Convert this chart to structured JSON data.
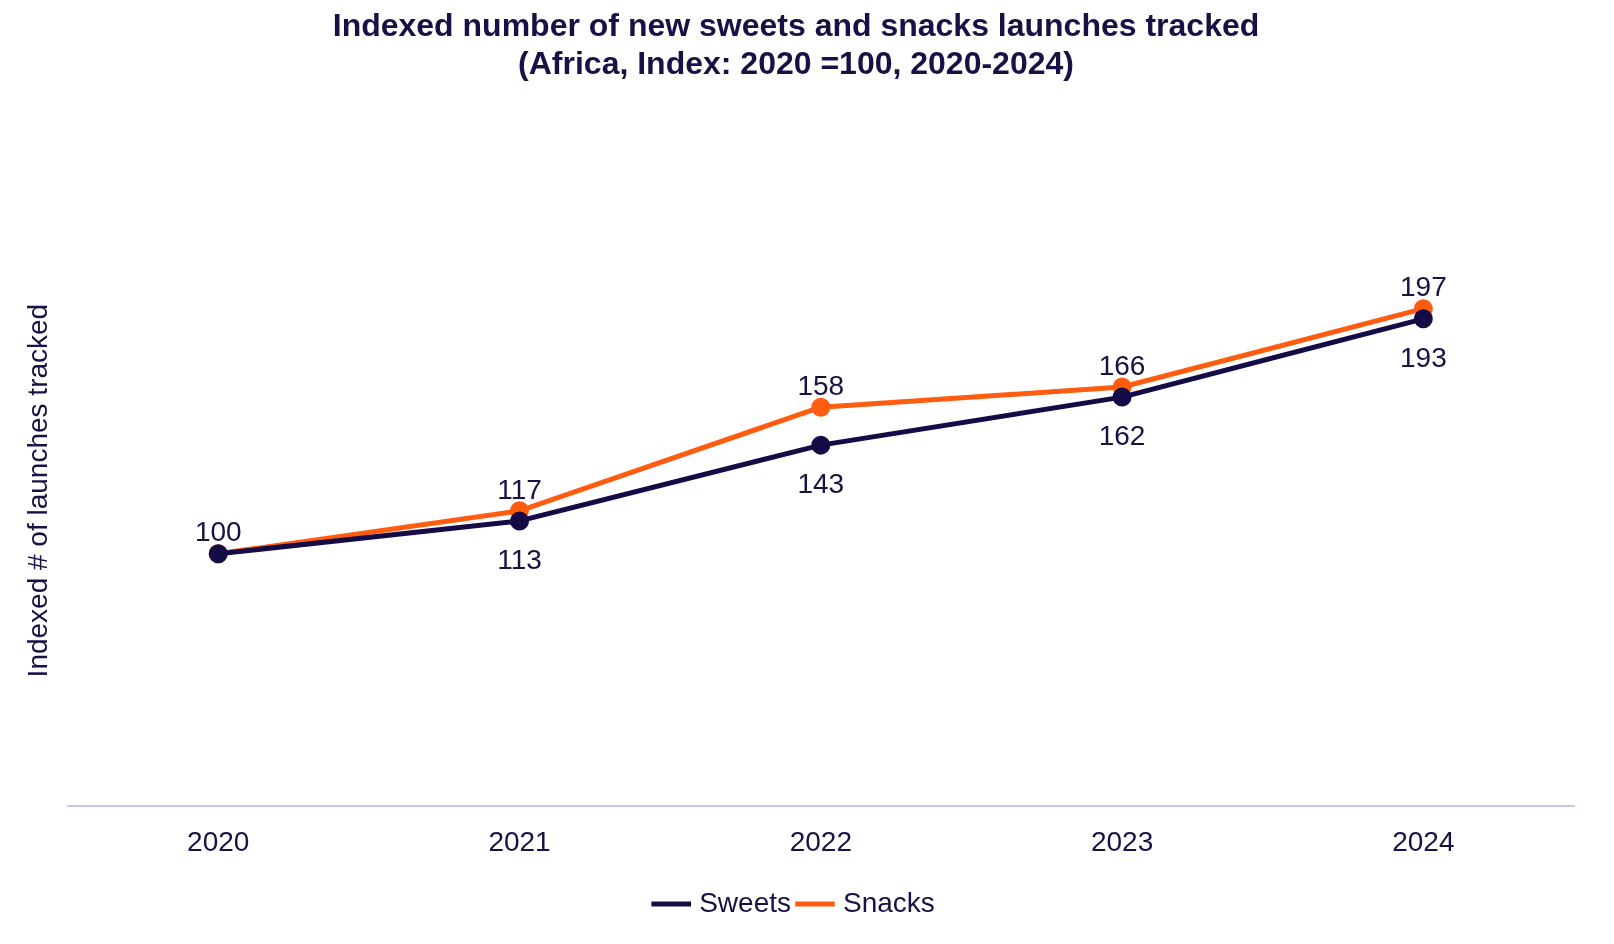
{
  "chart_data": {
    "type": "line",
    "title": [
      "Indexed number of new sweets and snacks launches tracked",
      "(Africa, Index: 2020 =100, 2020-2024)"
    ],
    "ylabel": "Indexed # of launches tracked",
    "categories": [
      "2020",
      "2021",
      "2022",
      "2023",
      "2024"
    ],
    "series": [
      {
        "name": "Sweets",
        "color": "#140c46",
        "values": [
          100,
          113,
          143,
          162,
          193
        ],
        "value_labels": [
          null,
          "113",
          "143",
          "162",
          "193"
        ]
      },
      {
        "name": "Snacks",
        "color": "#ff5c0f",
        "values": [
          100,
          117,
          158,
          166,
          197
        ],
        "value_labels": [
          "100",
          "117",
          "158",
          "166",
          "197"
        ]
      }
    ],
    "legend": "bottom",
    "marker": "circle",
    "line_style": "solid",
    "grid": false
  }
}
